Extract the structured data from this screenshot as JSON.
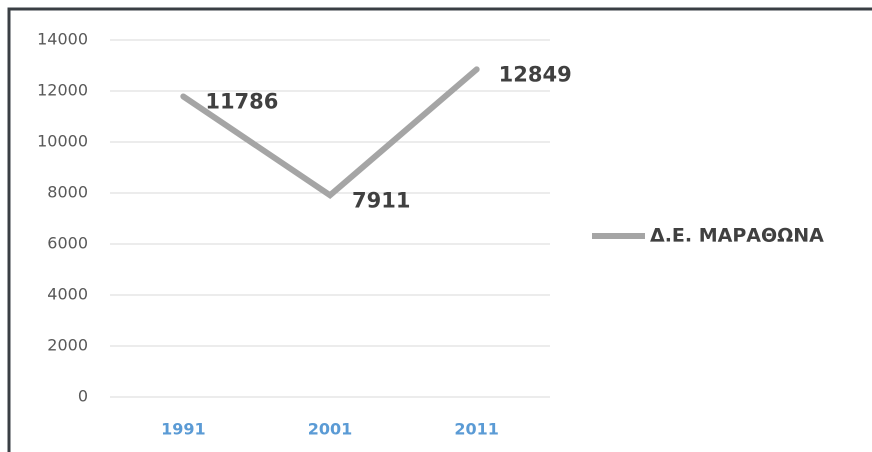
{
  "chart_data": {
    "type": "line",
    "categories": [
      "1991",
      "2001",
      "2011"
    ],
    "series": [
      {
        "name": "Δ.Ε. ΜΑΡΑΘΩΝΑ",
        "color": "#a5a5a5",
        "values": [
          11786,
          7911,
          12849
        ]
      }
    ],
    "ylim": [
      0,
      14000
    ],
    "yticks": [
      0,
      2000,
      4000,
      6000,
      8000,
      10000,
      12000,
      14000
    ],
    "grid": true,
    "legend": "right",
    "data_labels": true
  }
}
